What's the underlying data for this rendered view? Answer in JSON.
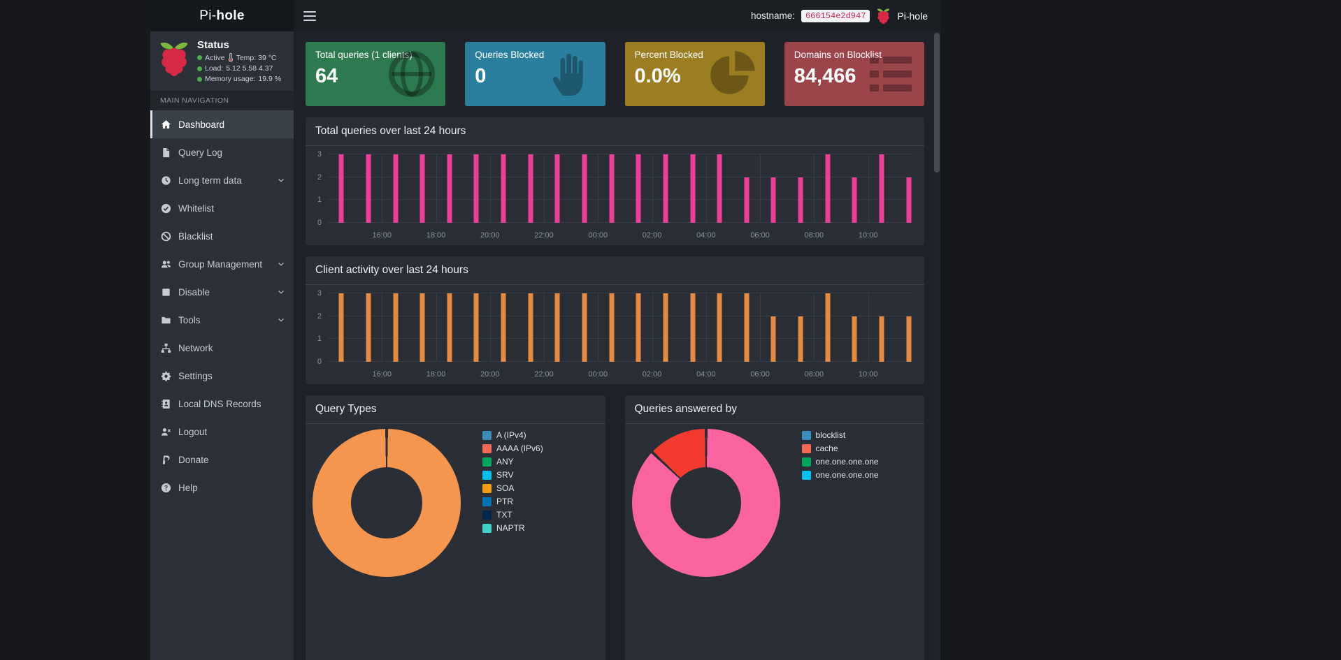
{
  "navbar": {
    "brand_prefix": "Pi-",
    "brand_suffix": "hole",
    "hostname_label": "hostname:",
    "hostname_value": "666154e2d947",
    "brand_right": "Pi-hole"
  },
  "sidebar": {
    "status": {
      "title": "Status",
      "dot_color": "#4cae4c",
      "lines": [
        {
          "text": "Active",
          "icon": "thermometer-icon",
          "detail": "Temp: 39 °C"
        },
        {
          "text": "Load:",
          "detail": "5.12 5.58 4.37"
        },
        {
          "text": "Memory usage:",
          "detail": "19.9 %"
        }
      ]
    },
    "section_label": "MAIN NAVIGATION",
    "items": [
      {
        "label": "Dashboard",
        "icon": "home-icon",
        "active": true
      },
      {
        "label": "Query Log",
        "icon": "file-icon"
      },
      {
        "label": "Long term data",
        "icon": "clock-icon",
        "expandable": true
      },
      {
        "label": "Whitelist",
        "icon": "check-circle-icon"
      },
      {
        "label": "Blacklist",
        "icon": "ban-icon"
      },
      {
        "label": "Group Management",
        "icon": "users-icon",
        "expandable": true
      },
      {
        "label": "Disable",
        "icon": "stop-icon",
        "expandable": true
      },
      {
        "label": "Tools",
        "icon": "folder-icon",
        "expandable": true
      },
      {
        "label": "Network",
        "icon": "network-icon"
      },
      {
        "label": "Settings",
        "icon": "gears-icon"
      },
      {
        "label": "Local DNS Records",
        "icon": "address-book-icon"
      },
      {
        "label": "Logout",
        "icon": "logout-icon"
      },
      {
        "label": "Donate",
        "icon": "donate-icon"
      },
      {
        "label": "Help",
        "icon": "help-icon"
      }
    ]
  },
  "stat_cards": [
    {
      "label": "Total queries (1 clients)",
      "value": "64",
      "color": "#2d7a4e",
      "icon": "globe-icon"
    },
    {
      "label": "Queries Blocked",
      "value": "0",
      "color": "#2a7f9e",
      "icon": "hand-icon"
    },
    {
      "label": "Percent Blocked",
      "value": "0.0%",
      "color": "#9c7d22",
      "icon": "pie-icon"
    },
    {
      "label": "Domains on Blocklist",
      "value": "84,466",
      "color": "#9b4449",
      "icon": "list-icon"
    }
  ],
  "panels": {
    "total_queries": "Total queries over last 24 hours",
    "client_activity": "Client activity over last 24 hours",
    "query_types": "Query Types",
    "queries_answered": "Queries answered by"
  },
  "chart_data": [
    {
      "name": "total-queries-chart",
      "type": "bar",
      "title": "Total queries over last 24 hours",
      "color": "#f03e98",
      "x": [
        "14:30",
        "15:30",
        "16:30",
        "17:30",
        "18:30",
        "19:30",
        "20:30",
        "21:30",
        "22:30",
        "23:30",
        "00:30",
        "01:30",
        "02:30",
        "03:30",
        "04:30",
        "05:30",
        "06:30",
        "07:30",
        "08:30",
        "09:30",
        "10:30",
        "11:30"
      ],
      "values": [
        3,
        3,
        3,
        3,
        3,
        3,
        3,
        3,
        3,
        3,
        3,
        3,
        3,
        3,
        3,
        2,
        2,
        2,
        3,
        2,
        3,
        2
      ],
      "ylim": [
        0,
        3
      ],
      "y_ticks": [
        0,
        1,
        2,
        3
      ],
      "x_ticks": [
        "16:00",
        "18:00",
        "20:00",
        "22:00",
        "00:00",
        "02:00",
        "04:00",
        "06:00",
        "08:00",
        "10:00"
      ],
      "x_range": [
        "14:00",
        "11:40"
      ],
      "grid": true,
      "legend_position": "none"
    },
    {
      "name": "client-activity-chart",
      "type": "bar",
      "title": "Client activity over last 24 hours",
      "color": "#e78a40",
      "x": [
        "14:30",
        "15:30",
        "16:30",
        "17:30",
        "18:30",
        "19:30",
        "20:30",
        "21:30",
        "22:30",
        "23:30",
        "00:30",
        "01:30",
        "02:30",
        "03:30",
        "04:30",
        "05:30",
        "06:30",
        "07:30",
        "08:30",
        "09:30",
        "10:30",
        "11:30"
      ],
      "values": [
        3,
        3,
        3,
        3,
        3,
        3,
        3,
        3,
        3,
        3,
        3,
        3,
        3,
        3,
        3,
        3,
        2,
        2,
        3,
        2,
        2,
        2
      ],
      "ylim": [
        0,
        3
      ],
      "y_ticks": [
        0,
        1,
        2,
        3
      ],
      "x_ticks": [
        "16:00",
        "18:00",
        "20:00",
        "22:00",
        "00:00",
        "02:00",
        "04:00",
        "06:00",
        "08:00",
        "10:00"
      ],
      "x_range": [
        "14:00",
        "11:40"
      ],
      "grid": true,
      "legend_position": "none"
    },
    {
      "name": "query-types-donut",
      "type": "pie",
      "title": "Query Types",
      "slices": [
        {
          "percent": 100,
          "color": "#f6954d"
        }
      ],
      "legend_position": "right",
      "legend": [
        {
          "label": "A (IPv4)",
          "color": "#3c8dbc"
        },
        {
          "label": "AAAA (IPv6)",
          "color": "#f56954"
        },
        {
          "label": "ANY",
          "color": "#00a65a"
        },
        {
          "label": "SRV",
          "color": "#00c0ef"
        },
        {
          "label": "SOA",
          "color": "#f39c12"
        },
        {
          "label": "PTR",
          "color": "#0073b7"
        },
        {
          "label": "TXT",
          "color": "#00274e"
        },
        {
          "label": "NAPTR",
          "color": "#3fd0c9"
        }
      ]
    },
    {
      "name": "queries-answered-donut",
      "type": "pie",
      "title": "Queries answered by",
      "slices": [
        {
          "percent": 87,
          "color": "#fc64a1"
        },
        {
          "percent": 13,
          "color": "#f23b2e"
        }
      ],
      "legend_position": "right",
      "legend": [
        {
          "label": "blocklist",
          "color": "#3c8dbc"
        },
        {
          "label": "cache",
          "color": "#f56954"
        },
        {
          "label": "one.one.one.one",
          "color": "#00a65a"
        },
        {
          "label": "one.one.one.one",
          "color": "#00c0ef"
        }
      ]
    }
  ]
}
